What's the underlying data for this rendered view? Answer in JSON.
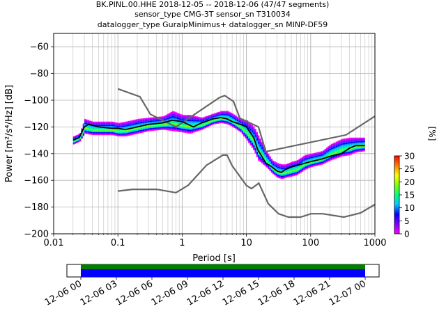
{
  "title_lines": [
    "BK.PINL.00.HHE   2018-12-05 -- 2018-12-06  (47/47 segments)",
    "sensor_type CMG-3T sensor_sn T310034",
    "datalogger_type GuralpMinimus+ datalogger_sn MINP-DF59"
  ],
  "chart_data": [
    {
      "type": "heatmap",
      "title": "BK.PINL.00.HHE   2018-12-05 -- 2018-12-06  (47/47 segments)",
      "xlabel": "Period [s]",
      "ylabel": "Power [m²/s⁴/Hz] [dB]",
      "x_scale": "log",
      "xlim": [
        0.01,
        1000
      ],
      "ylim": [
        -200,
        -50
      ],
      "x_ticks": [
        "0.01",
        "0.1",
        "1",
        "10",
        "100",
        "1000"
      ],
      "y_ticks": [
        "−200",
        "−180",
        "−160",
        "−140",
        "−120",
        "−100",
        "−80",
        "−60"
      ],
      "grid": true,
      "colorbar": {
        "label": "[%]",
        "ticks": [
          "0",
          "5",
          "10",
          "15",
          "20",
          "25",
          "30"
        ],
        "range": [
          0,
          30
        ],
        "colormap": [
          "#ff00ff",
          "#7f00ff",
          "#0000ff",
          "#00c8ff",
          "#00ff80",
          "#80ff00",
          "#ffff00",
          "#ff8000",
          "#ff0000"
        ]
      },
      "band": {
        "period": [
          0.02,
          0.025,
          0.03,
          0.04,
          0.06,
          0.08,
          0.1,
          0.13,
          0.2,
          0.3,
          0.5,
          0.7,
          1.0,
          1.3,
          2,
          3,
          4,
          5,
          6,
          8,
          10,
          13,
          15,
          20,
          25,
          30,
          35,
          40,
          50,
          60,
          80,
          100,
          150,
          200,
          300,
          400,
          500,
          700
        ],
        "upper": [
          -127,
          -125,
          -114,
          -116,
          -116,
          -116,
          -117,
          -116,
          -114,
          -113,
          -112,
          -108,
          -111,
          -111,
          -113,
          -110,
          -108,
          -108,
          -110,
          -114,
          -115,
          -120,
          -126,
          -138,
          -145,
          -147,
          -148,
          -148,
          -146,
          -145,
          -141,
          -140,
          -138,
          -133,
          -129,
          -128,
          -128,
          -128
        ],
        "lower": [
          -133,
          -131,
          -125,
          -126,
          -126,
          -126,
          -127,
          -127,
          -125,
          -123,
          -122,
          -123,
          -124,
          -125,
          -122,
          -118,
          -117,
          -118,
          -120,
          -124,
          -130,
          -138,
          -145,
          -150,
          -155,
          -158,
          -159,
          -158,
          -157,
          -156,
          -152,
          -150,
          -148,
          -145,
          -142,
          -141,
          -139,
          -138
        ]
      },
      "mean": {
        "period": [
          0.02,
          0.025,
          0.03,
          0.035,
          0.05,
          0.08,
          0.1,
          0.13,
          0.2,
          0.3,
          0.5,
          0.7,
          1.0,
          1.5,
          2,
          3,
          4,
          5,
          6,
          8,
          10,
          13,
          15,
          20,
          25,
          30,
          35,
          40,
          50,
          70,
          100,
          150,
          200,
          300,
          400,
          500,
          700
        ],
        "value": [
          -130,
          -128,
          -120,
          -118,
          -120,
          -121,
          -121,
          -122,
          -120,
          -118,
          -117,
          -115,
          -116,
          -120,
          -117,
          -114,
          -113,
          -114,
          -116,
          -118,
          -120,
          -128,
          -137,
          -147,
          -150,
          -153,
          -154,
          -152,
          -150,
          -148,
          -146,
          -144,
          -142,
          -140,
          -136,
          -134,
          -134
        ]
      },
      "nhnm": {
        "period": [
          0.1,
          0.22,
          0.32,
          0.8,
          3.8,
          4.6,
          6.3,
          7.9,
          15.4,
          20,
          354.8,
          1000
        ],
        "value": [
          -91.5,
          -97.4,
          -110.5,
          -120,
          -98,
          -96.5,
          -101,
          -113.5,
          -120,
          -138.5,
          -126,
          -112
        ]
      },
      "nlnm": {
        "period": [
          0.1,
          0.17,
          0.4,
          0.8,
          1.24,
          2.4,
          4.3,
          5.0,
          6.0,
          10.0,
          12.0,
          15.6,
          21.9,
          31.6,
          45,
          70,
          101,
          154,
          328,
          600,
          1000
        ],
        "value": [
          -168,
          -166.7,
          -166.7,
          -169.2,
          -163.7,
          -148.6,
          -141.1,
          -141.1,
          -149,
          -163.8,
          -166.2,
          -162.1,
          -177.5,
          -185,
          -187.5,
          -187.5,
          -185,
          -185,
          -187.5,
          -184.4,
          -178
        ]
      }
    },
    {
      "type": "timeline",
      "ticks": [
        "12-06 00",
        "12-06 03",
        "12-06 06",
        "12-06 09",
        "12-06 12",
        "12-06 15",
        "12-06 18",
        "12-06 21",
        "12-07 00"
      ],
      "data_start": "12-06 00",
      "data_end": "12-07 00",
      "colors": [
        "#008000",
        "#0000ff"
      ]
    }
  ]
}
